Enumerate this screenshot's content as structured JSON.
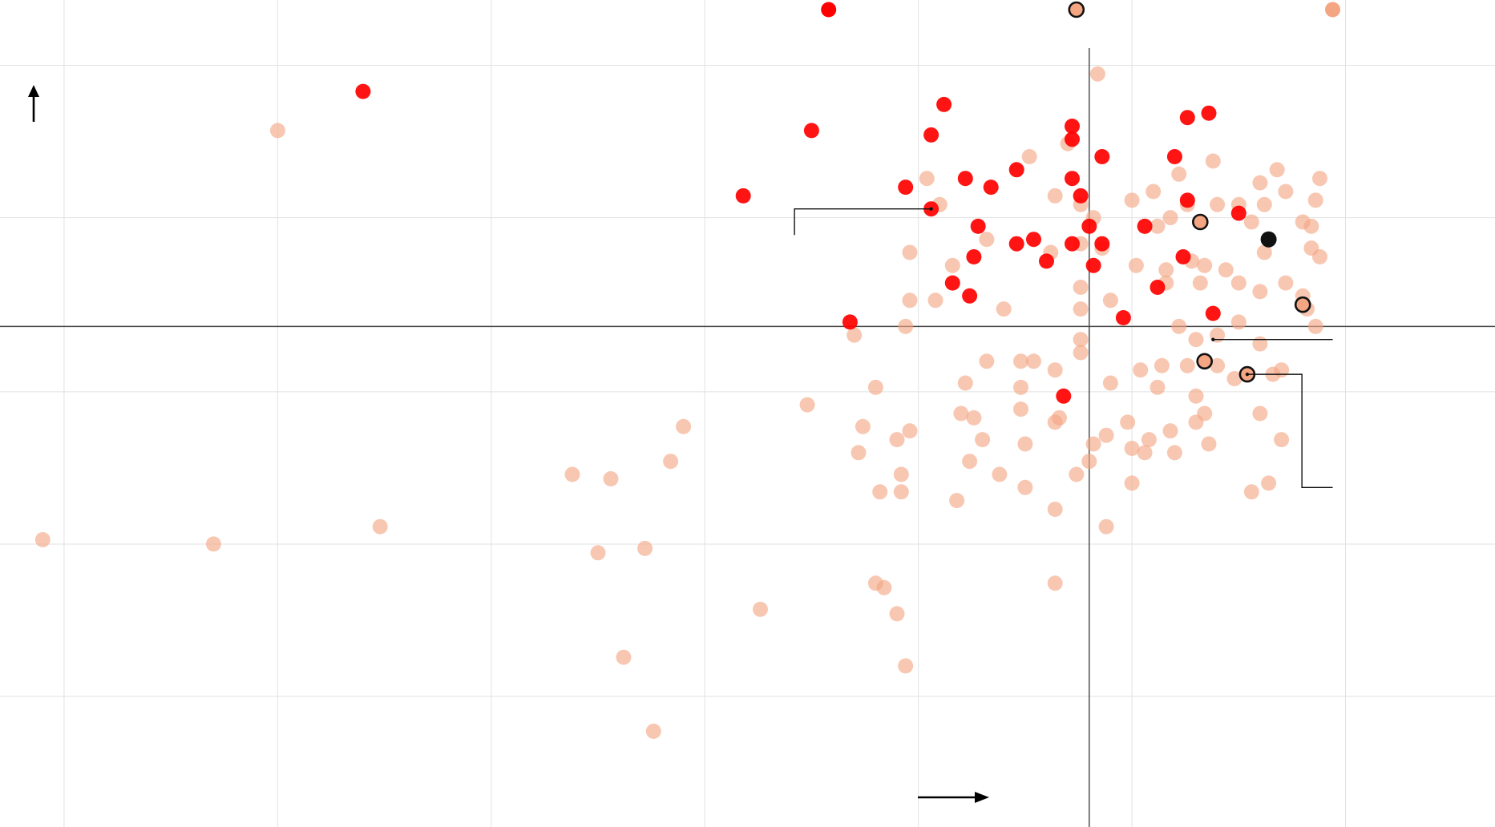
{
  "colors": {
    "background": "#ffffff",
    "grid": "#e2e2e2",
    "axis": "#444444",
    "light_point": "#f4a582",
    "dark_point": "#ff0000",
    "highlight_point": "#111111",
    "outline": "#111111",
    "leader": "#111111"
  },
  "chart_data": {
    "type": "scatter",
    "title": "",
    "xlabel": "",
    "ylabel": "",
    "xlim": [
      -25.5,
      9.5
    ],
    "ylim": [
      -11.5,
      7.5
    ],
    "x_gridlines": [
      -24,
      -19,
      -14,
      -9,
      -4,
      1,
      6
    ],
    "y_gridlines": [
      6,
      2.5,
      -1.5,
      -5,
      -8.5
    ],
    "zero_axes": true,
    "grid": true,
    "legend": "none",
    "x_axis_arrow": "right",
    "y_axis_arrow": "up",
    "series": [
      {
        "style": "light",
        "points": [
          [
            -19.0,
            4.5
          ],
          [
            0.2,
            5.8
          ],
          [
            -0.5,
            4.2
          ],
          [
            -1.4,
            3.9
          ],
          [
            1.5,
            3.1
          ],
          [
            4.4,
            3.6
          ],
          [
            2.9,
            3.8
          ],
          [
            2.1,
            3.5
          ],
          [
            4.0,
            3.3
          ],
          [
            4.6,
            3.1
          ],
          [
            5.4,
            3.4
          ],
          [
            -3.8,
            3.4
          ],
          [
            -0.8,
            3.0
          ],
          [
            1.0,
            2.9
          ],
          [
            2.3,
            2.8
          ],
          [
            3.0,
            2.8
          ],
          [
            3.5,
            2.8
          ],
          [
            4.1,
            2.8
          ],
          [
            5.3,
            2.9
          ],
          [
            -3.5,
            2.8
          ],
          [
            -0.2,
            2.8
          ],
          [
            0.1,
            2.5
          ],
          [
            1.9,
            2.5
          ],
          [
            3.8,
            2.4
          ],
          [
            5.0,
            2.4
          ],
          [
            5.2,
            2.3
          ],
          [
            -4.2,
            1.7
          ],
          [
            -2.4,
            2.0
          ],
          [
            -0.2,
            1.9
          ],
          [
            0.3,
            1.8
          ],
          [
            1.6,
            2.3
          ],
          [
            -3.2,
            1.4
          ],
          [
            -0.9,
            1.7
          ],
          [
            1.1,
            1.4
          ],
          [
            1.8,
            1.3
          ],
          [
            2.4,
            1.5
          ],
          [
            2.7,
            1.4
          ],
          [
            3.2,
            1.3
          ],
          [
            4.1,
            1.7
          ],
          [
            5.4,
            1.6
          ],
          [
            5.2,
            1.8
          ],
          [
            -4.2,
            0.6
          ],
          [
            -3.6,
            0.6
          ],
          [
            -2.0,
            0.4
          ],
          [
            -0.2,
            0.9
          ],
          [
            0.5,
            0.6
          ],
          [
            1.8,
            1.0
          ],
          [
            2.6,
            1.0
          ],
          [
            3.5,
            1.0
          ],
          [
            4.0,
            0.8
          ],
          [
            4.6,
            1.0
          ],
          [
            5.0,
            0.7
          ],
          [
            5.1,
            0.4
          ],
          [
            5.3,
            0.0
          ],
          [
            -0.2,
            0.4
          ],
          [
            -0.2,
            -0.3
          ],
          [
            2.1,
            0.0
          ],
          [
            2.5,
            -0.3
          ],
          [
            3.0,
            -0.2
          ],
          [
            3.5,
            0.1
          ],
          [
            4.0,
            -0.4
          ],
          [
            -5.5,
            -0.2
          ],
          [
            -4.3,
            0.0
          ],
          [
            -2.4,
            -0.8
          ],
          [
            -1.6,
            -0.8
          ],
          [
            -1.3,
            -0.8
          ],
          [
            -0.8,
            -1.0
          ],
          [
            -0.2,
            -0.6
          ],
          [
            1.2,
            -1.0
          ],
          [
            1.7,
            -0.9
          ],
          [
            2.3,
            -0.9
          ],
          [
            3.0,
            -0.9
          ],
          [
            3.4,
            -1.2
          ],
          [
            -5.0,
            -1.4
          ],
          [
            -2.9,
            -1.3
          ],
          [
            -1.6,
            -1.4
          ],
          [
            0.5,
            -1.3
          ],
          [
            1.6,
            -1.4
          ],
          [
            2.5,
            -1.6
          ],
          [
            4.3,
            -1.1
          ],
          [
            4.5,
            -1.0
          ],
          [
            -6.6,
            -1.8
          ],
          [
            -3.0,
            -2.0
          ],
          [
            -2.7,
            -2.1
          ],
          [
            -1.6,
            -1.9
          ],
          [
            -0.7,
            -2.1
          ],
          [
            0.9,
            -2.2
          ],
          [
            1.9,
            -2.4
          ],
          [
            2.5,
            -2.2
          ],
          [
            2.7,
            -2.0
          ],
          [
            4.0,
            -2.0
          ],
          [
            -9.5,
            -2.3
          ],
          [
            -5.3,
            -2.3
          ],
          [
            -4.5,
            -2.6
          ],
          [
            -4.2,
            -2.4
          ],
          [
            -0.8,
            -2.2
          ],
          [
            1.4,
            -2.6
          ],
          [
            -2.5,
            -2.6
          ],
          [
            -1.5,
            -2.7
          ],
          [
            0.4,
            -2.5
          ],
          [
            0.1,
            -2.7
          ],
          [
            1.0,
            -2.8
          ],
          [
            1.3,
            -2.9
          ],
          [
            2.0,
            -2.9
          ],
          [
            2.8,
            -2.7
          ],
          [
            4.5,
            -2.6
          ],
          [
            -5.4,
            -2.9
          ],
          [
            -9.8,
            -3.1
          ],
          [
            -2.8,
            -3.1
          ],
          [
            -4.4,
            -3.4
          ],
          [
            -2.1,
            -3.4
          ],
          [
            0.0,
            -3.1
          ],
          [
            -0.3,
            -3.4
          ],
          [
            1.0,
            -3.6
          ],
          [
            3.8,
            -3.8
          ],
          [
            4.2,
            -3.6
          ],
          [
            -12.1,
            -3.4
          ],
          [
            -11.2,
            -3.5
          ],
          [
            -4.9,
            -3.8
          ],
          [
            -4.4,
            -3.8
          ],
          [
            -3.1,
            -4.0
          ],
          [
            -1.5,
            -3.7
          ],
          [
            -0.8,
            -4.2
          ],
          [
            0.4,
            -4.6
          ],
          [
            -24.5,
            -4.9
          ],
          [
            -20.5,
            -5.0
          ],
          [
            -16.6,
            -4.6
          ],
          [
            -11.5,
            -5.2
          ],
          [
            -10.4,
            -5.1
          ],
          [
            -5.0,
            -5.9
          ],
          [
            -4.8,
            -6.0
          ],
          [
            -0.8,
            -5.9
          ],
          [
            -7.7,
            -6.5
          ],
          [
            -4.5,
            -6.6
          ],
          [
            -10.9,
            -7.6
          ],
          [
            -4.3,
            -7.8
          ],
          [
            -10.2,
            -9.3
          ]
        ]
      },
      {
        "style": "dark",
        "points": [
          [
            -17.0,
            5.4
          ],
          [
            -3.4,
            5.1
          ],
          [
            -6.5,
            4.5
          ],
          [
            -3.7,
            4.4
          ],
          [
            -0.4,
            4.6
          ],
          [
            -0.4,
            4.3
          ],
          [
            2.3,
            4.8
          ],
          [
            2.8,
            4.9
          ],
          [
            0.3,
            3.9
          ],
          [
            2.0,
            3.9
          ],
          [
            -1.7,
            3.6
          ],
          [
            -2.9,
            3.4
          ],
          [
            -4.3,
            3.2
          ],
          [
            -0.4,
            3.4
          ],
          [
            -2.3,
            3.2
          ],
          [
            -0.2,
            3.0
          ],
          [
            -8.1,
            3.0
          ],
          [
            -3.7,
            2.7
          ],
          [
            2.3,
            2.9
          ],
          [
            3.5,
            2.6
          ],
          [
            -2.6,
            2.3
          ],
          [
            1.3,
            2.3
          ],
          [
            0.0,
            2.3
          ],
          [
            -1.3,
            2.0
          ],
          [
            -1.7,
            1.9
          ],
          [
            -0.4,
            1.9
          ],
          [
            0.3,
            1.9
          ],
          [
            2.2,
            1.6
          ],
          [
            -2.7,
            1.6
          ],
          [
            -1.0,
            1.5
          ],
          [
            0.1,
            1.4
          ],
          [
            -3.2,
            1.0
          ],
          [
            -2.8,
            0.7
          ],
          [
            1.6,
            0.9
          ],
          [
            -5.6,
            0.1
          ],
          [
            0.8,
            0.2
          ],
          [
            2.9,
            0.3
          ],
          [
            -0.6,
            -1.6
          ]
        ]
      },
      {
        "style": "outlined",
        "points": [
          [
            -0.3,
            7.3
          ],
          [
            2.6,
            2.4
          ],
          [
            5.0,
            0.5
          ],
          [
            2.7,
            -0.8
          ],
          [
            3.7,
            -1.1
          ]
        ]
      },
      {
        "style": "highlight",
        "points": [
          [
            4.2,
            2.0
          ]
        ]
      },
      {
        "style": "clipped",
        "points": [
          [
            -6.1,
            7.3
          ],
          [
            5.7,
            7.3
          ]
        ]
      }
    ],
    "annotations": [
      {
        "from": [
          -3.7,
          2.7
        ],
        "to": [
          -6.9,
          2.1
        ],
        "kind": "elbow-down"
      },
      {
        "from": [
          2.9,
          -0.3
        ],
        "to": [
          5.7,
          -0.3
        ],
        "kind": "horizontal"
      },
      {
        "from": [
          3.7,
          -1.1
        ],
        "to": [
          5.7,
          -3.7
        ],
        "kind": "elbow-right"
      }
    ]
  }
}
